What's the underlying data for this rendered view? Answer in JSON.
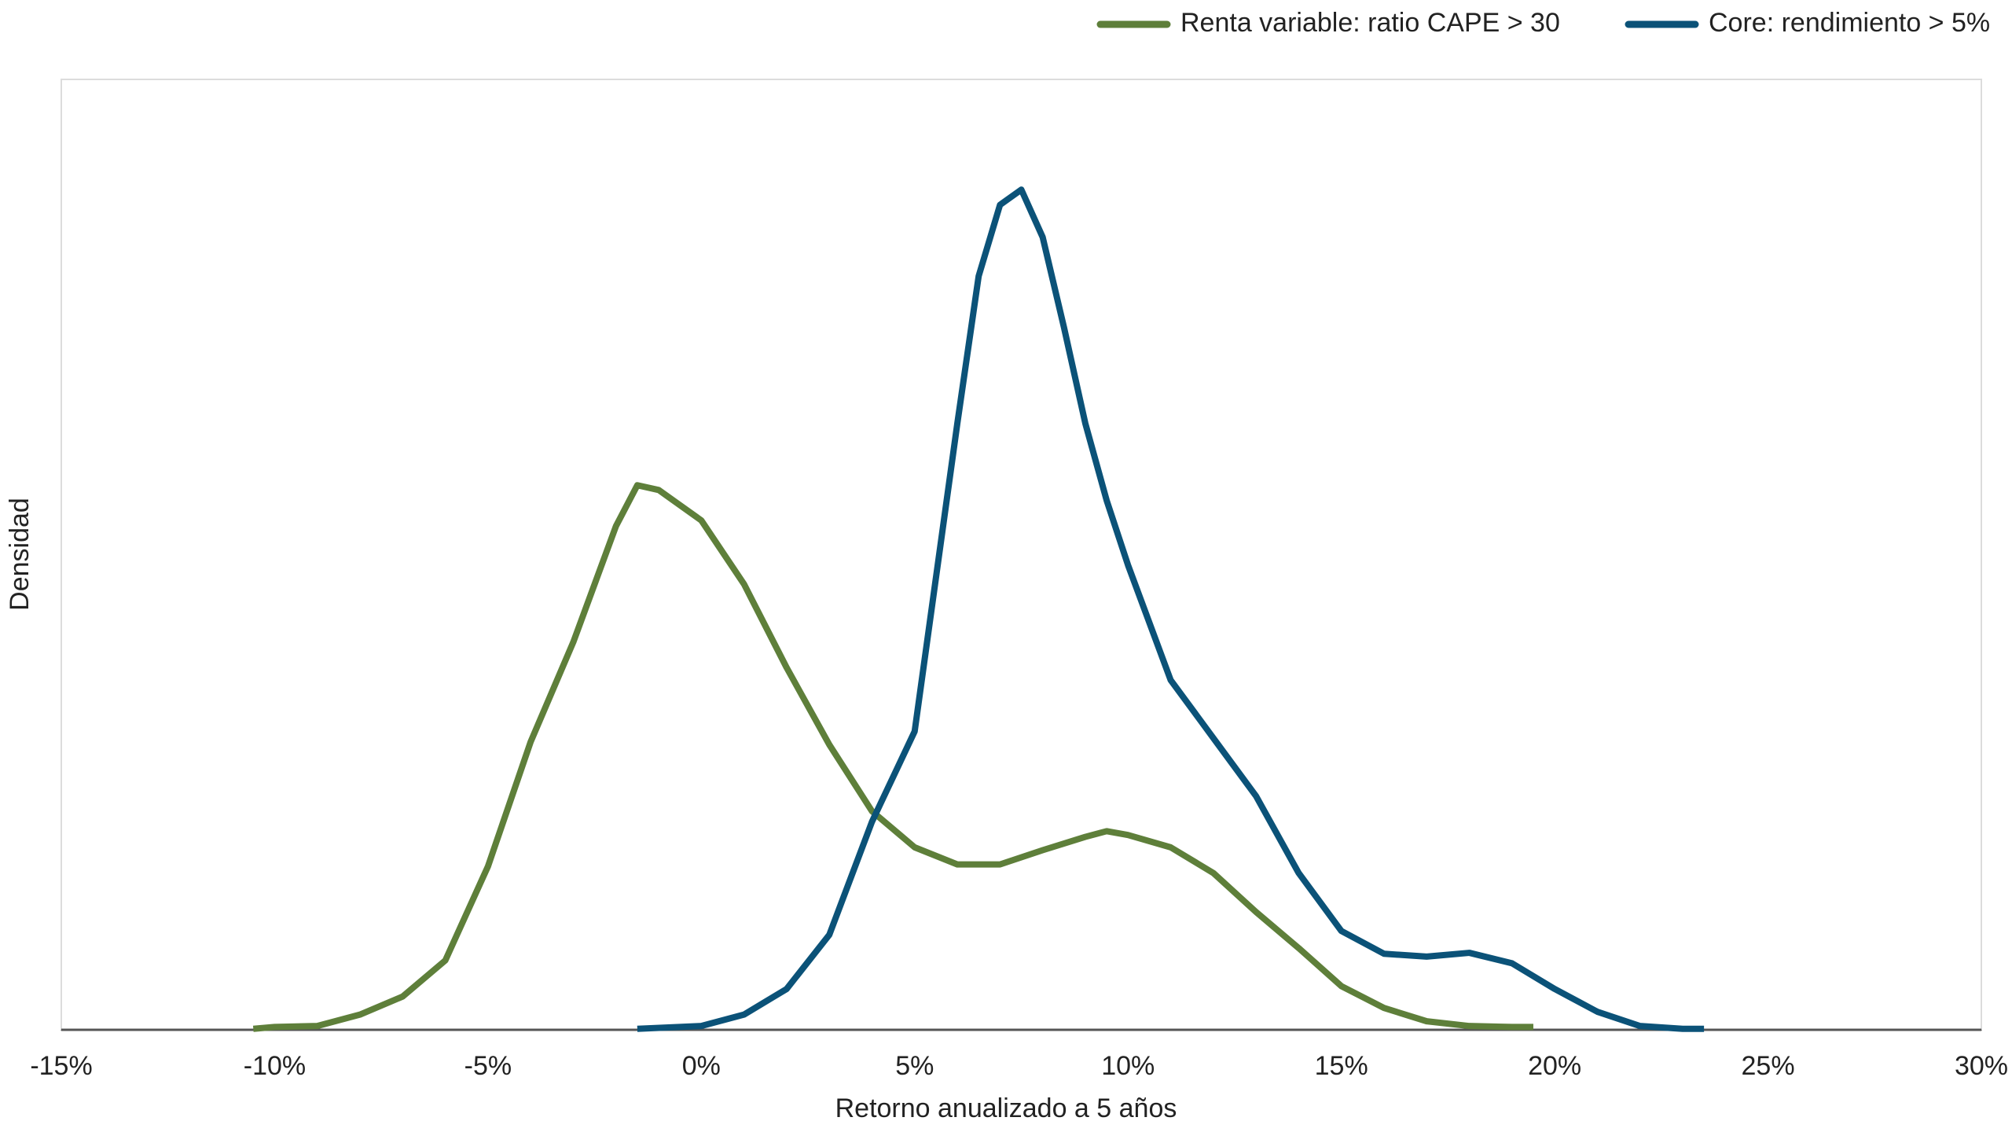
{
  "chart_data": {
    "type": "line",
    "xlabel": "Retorno anualizado a 5 años",
    "ylabel": "Densidad",
    "xlim": [
      -15,
      30
    ],
    "xticks": [
      {
        "value": -15,
        "label": "-15%"
      },
      {
        "value": -10,
        "label": "-10%"
      },
      {
        "value": -5,
        "label": "-5%"
      },
      {
        "value": 0,
        "label": "0%"
      },
      {
        "value": 5,
        "label": "5%"
      },
      {
        "value": 10,
        "label": "10%"
      },
      {
        "value": 15,
        "label": "15%"
      },
      {
        "value": 20,
        "label": "20%"
      },
      {
        "value": 25,
        "label": "25%"
      },
      {
        "value": 30,
        "label": "30%"
      }
    ],
    "ylim": [
      0,
      1
    ],
    "legend": "top-right",
    "series": [
      {
        "name": "Renta variable: ratio CAPE > 30",
        "color": "#5e7f3a",
        "x": [
          -10.5,
          -10,
          -9,
          -8,
          -7,
          -6,
          -5,
          -4,
          -3,
          -2,
          -1.5,
          -1,
          0,
          1,
          2,
          3,
          4,
          5,
          6,
          7,
          8,
          9,
          9.5,
          10,
          11,
          12,
          13,
          14,
          15,
          16,
          17,
          18,
          19,
          19.5
        ],
        "values": [
          0.001,
          0.003,
          0.004,
          0.016,
          0.035,
          0.073,
          0.172,
          0.303,
          0.408,
          0.53,
          0.573,
          0.568,
          0.536,
          0.469,
          0.381,
          0.3,
          0.23,
          0.192,
          0.174,
          0.174,
          0.189,
          0.203,
          0.209,
          0.205,
          0.192,
          0.165,
          0.124,
          0.086,
          0.046,
          0.023,
          0.009,
          0.004,
          0.003,
          0.003
        ]
      },
      {
        "name": "Core: rendimiento > 5%",
        "color": "#0b5278",
        "x": [
          -1.5,
          0,
          1,
          2,
          3,
          4,
          5,
          6,
          6.5,
          7,
          7.5,
          8,
          8.5,
          9,
          9.5,
          10,
          11,
          12,
          13,
          14,
          15,
          16,
          17,
          18,
          19,
          20,
          21,
          22,
          23,
          23.5
        ],
        "values": [
          0.001,
          0.004,
          0.016,
          0.043,
          0.1,
          0.219,
          0.314,
          0.638,
          0.793,
          0.868,
          0.884,
          0.834,
          0.739,
          0.638,
          0.557,
          0.489,
          0.368,
          0.307,
          0.246,
          0.165,
          0.104,
          0.08,
          0.077,
          0.081,
          0.07,
          0.043,
          0.019,
          0.004,
          0.001,
          0.001
        ]
      }
    ]
  }
}
